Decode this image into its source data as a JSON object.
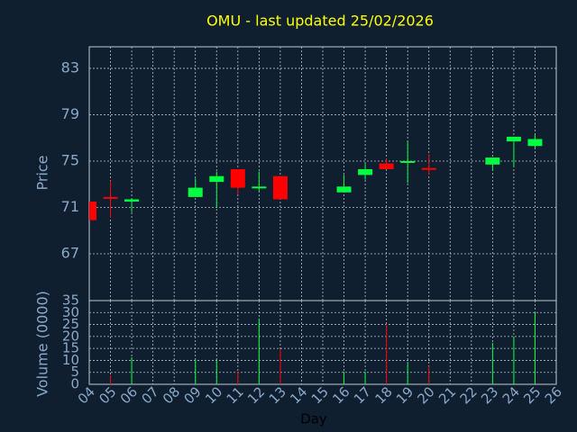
{
  "chart_data": {
    "type": "candlestick",
    "title": "OMU - last updated 25/02/2026",
    "y_label": "Price",
    "y2_label": "Volume (0000)",
    "x_label": "Day",
    "categories": [
      "04",
      "05",
      "06",
      "07",
      "08",
      "09",
      "10",
      "11",
      "12",
      "13",
      "14",
      "15",
      "16",
      "17",
      "18",
      "19",
      "20",
      "21",
      "22",
      "23",
      "24",
      "25",
      "26"
    ],
    "open": [
      71.5,
      71.9,
      71.5,
      null,
      null,
      71.9,
      73.2,
      74.3,
      72.7,
      73.7,
      null,
      null,
      72.3,
      73.8,
      74.8,
      74.9,
      74.4,
      null,
      null,
      74.7,
      76.7,
      76.3,
      null
    ],
    "high": [
      71.5,
      73.3,
      71.8,
      null,
      null,
      73.5,
      74.1,
      74.3,
      74.1,
      73.7,
      null,
      null,
      73.8,
      74.8,
      75.2,
      76.7,
      75.6,
      null,
      null,
      75.3,
      77.1,
      77.3,
      null
    ],
    "low": [
      69.9,
      70.1,
      70.6,
      null,
      null,
      71.9,
      71.0,
      72.1,
      72.4,
      71.7,
      null,
      null,
      72.3,
      73.4,
      74.3,
      73.1,
      73.8,
      null,
      null,
      74.2,
      74.5,
      76.1,
      null
    ],
    "close": [
      69.9,
      71.8,
      71.7,
      null,
      null,
      72.7,
      73.7,
      72.7,
      72.8,
      71.7,
      null,
      null,
      72.8,
      74.3,
      74.3,
      75.0,
      74.3,
      null,
      null,
      75.3,
      77.1,
      76.9,
      null
    ],
    "volume": [
      0,
      3.8,
      11.3,
      null,
      null,
      10.2,
      10.5,
      5.3,
      27.5,
      14.7,
      null,
      null,
      5.3,
      5.3,
      25.2,
      9.0,
      7.5,
      null,
      null,
      17.3,
      20.0,
      30.1,
      null
    ],
    "up_color": "#00ff40",
    "down_color": "#ff0000",
    "ylim": [
      62.96,
      84.86
    ],
    "yticks": [
      67,
      71,
      75,
      79,
      83
    ],
    "y2lim": [
      0,
      35
    ],
    "y2ticks": [
      0,
      5,
      10,
      15,
      20,
      25,
      30,
      35
    ],
    "grid": true
  }
}
